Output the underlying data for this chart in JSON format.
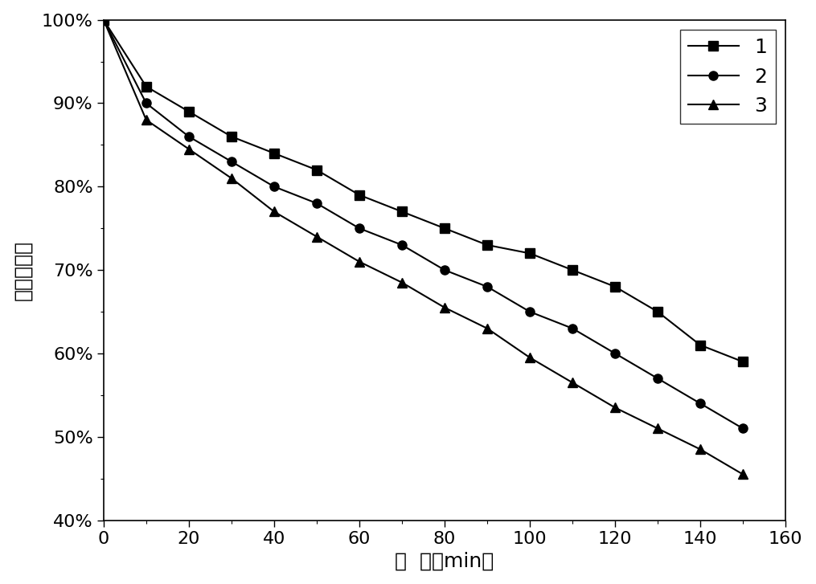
{
  "series": [
    {
      "label": "1",
      "marker": "s",
      "x": [
        0,
        10,
        20,
        30,
        40,
        50,
        60,
        70,
        80,
        90,
        100,
        110,
        120,
        130,
        140,
        150
      ],
      "y": [
        1.0,
        0.92,
        0.89,
        0.86,
        0.84,
        0.82,
        0.79,
        0.77,
        0.75,
        0.73,
        0.72,
        0.7,
        0.68,
        0.65,
        0.61,
        0.59
      ]
    },
    {
      "label": "2",
      "marker": "o",
      "x": [
        0,
        10,
        20,
        30,
        40,
        50,
        60,
        70,
        80,
        90,
        100,
        110,
        120,
        130,
        140,
        150
      ],
      "y": [
        1.0,
        0.9,
        0.86,
        0.83,
        0.8,
        0.78,
        0.75,
        0.73,
        0.7,
        0.68,
        0.65,
        0.63,
        0.6,
        0.57,
        0.54,
        0.51
      ]
    },
    {
      "label": "3",
      "marker": "^",
      "x": [
        0,
        10,
        20,
        30,
        40,
        50,
        60,
        70,
        80,
        90,
        100,
        110,
        120,
        130,
        140,
        150
      ],
      "y": [
        1.0,
        0.88,
        0.845,
        0.81,
        0.77,
        0.74,
        0.71,
        0.685,
        0.655,
        0.63,
        0.595,
        0.565,
        0.535,
        0.51,
        0.485,
        0.455
      ]
    }
  ],
  "color": "#000000",
  "line_style": "-",
  "line_width": 1.5,
  "marker_size": 8,
  "xlim": [
    0,
    160
  ],
  "ylim": [
    0.4,
    1.0
  ],
  "xticks": [
    0,
    20,
    40,
    60,
    80,
    100,
    120,
    140,
    160
  ],
  "yticks": [
    0.4,
    0.5,
    0.6,
    0.7,
    0.8,
    0.9,
    1.0
  ],
  "ytick_labels": [
    "40%",
    "50%",
    "60%",
    "70%",
    "80%",
    "90%",
    "100%"
  ],
  "xlabel": "时  间（min）",
  "ylabel": "肆态去除率",
  "xlabel_fontsize": 18,
  "ylabel_fontsize": 18,
  "tick_fontsize": 16,
  "legend_fontsize": 18,
  "legend_loc": "upper right",
  "background_color": "#ffffff"
}
